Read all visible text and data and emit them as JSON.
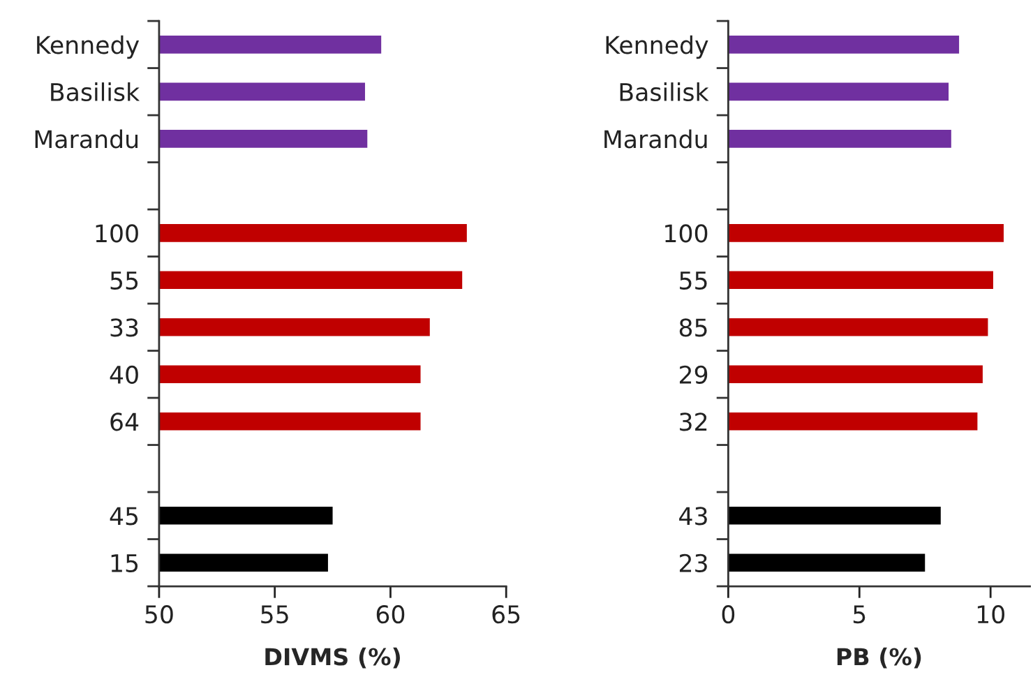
{
  "chart_data": [
    {
      "type": "bar",
      "orientation": "horizontal",
      "xlabel": "DIVMS (%)",
      "categories": [
        "Kennedy",
        "Basilisk",
        "Marandu",
        null,
        "100",
        "55",
        "33",
        "40",
        "64",
        null,
        "45",
        "15"
      ],
      "values": [
        59.6,
        58.9,
        59.0,
        null,
        63.3,
        63.1,
        61.7,
        61.3,
        61.3,
        null,
        57.5,
        57.3
      ],
      "colors": [
        "#7030a0",
        "#7030a0",
        "#7030a0",
        null,
        "#c00000",
        "#c00000",
        "#c00000",
        "#c00000",
        "#c00000",
        null,
        "#000000",
        "#000000"
      ],
      "xlim": [
        50,
        65
      ],
      "xticks": [
        50,
        55,
        60,
        65
      ],
      "grid": false,
      "legend": false
    },
    {
      "type": "bar",
      "orientation": "horizontal",
      "xlabel": "PB (%)",
      "categories": [
        "Kennedy",
        "Basilisk",
        "Marandu",
        null,
        "100",
        "55",
        "85",
        "29",
        "32",
        null,
        "43",
        "23"
      ],
      "values": [
        8.8,
        8.4,
        8.5,
        null,
        10.5,
        10.1,
        9.9,
        9.7,
        9.5,
        null,
        8.1,
        7.5
      ],
      "colors": [
        "#7030a0",
        "#7030a0",
        "#7030a0",
        null,
        "#c00000",
        "#c00000",
        "#c00000",
        "#c00000",
        "#c00000",
        null,
        "#000000",
        "#000000"
      ],
      "xlim": [
        0,
        11.5
      ],
      "xticks": [
        0,
        5,
        10
      ],
      "grid": false,
      "legend": false
    }
  ]
}
